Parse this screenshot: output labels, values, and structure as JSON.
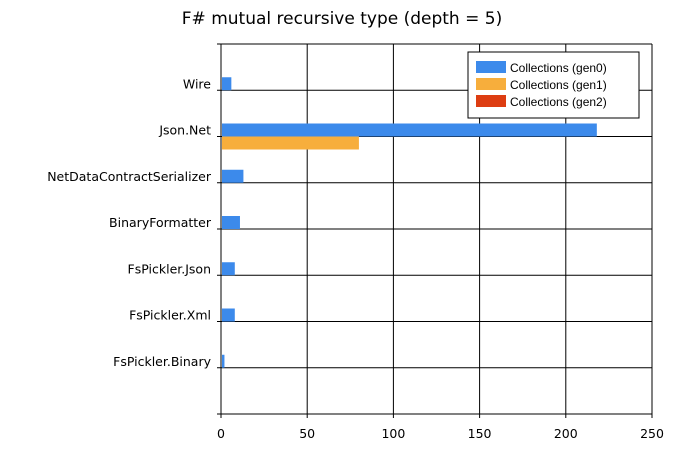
{
  "chart_data": {
    "type": "bar",
    "orientation": "horizontal",
    "title": "F# mutual recursive type (depth = 5)",
    "xlabel": "",
    "ylabel": "",
    "categories": [
      "Wire",
      "Json.Net",
      "NetDataContractSerializer",
      "BinaryFormatter",
      "FsPickler.Json",
      "FsPickler.Xml",
      "FsPickler.Binary"
    ],
    "series": [
      {
        "name": "Collections (gen0)",
        "color": "#3c8aeb",
        "values": [
          6,
          218,
          13,
          11,
          8,
          8,
          2
        ]
      },
      {
        "name": "Collections (gen1)",
        "color": "#f7ae3c",
        "values": [
          0,
          80,
          0,
          0,
          0,
          0,
          0
        ]
      },
      {
        "name": "Collections (gen2)",
        "color": "#dd3d12",
        "values": [
          0,
          0,
          0,
          0,
          0,
          0,
          0
        ]
      }
    ],
    "xlim": [
      0,
      250
    ],
    "xticks": [
      "0",
      "50",
      "100",
      "150",
      "200",
      "250"
    ],
    "grid": true,
    "legend_position": "top-right"
  }
}
